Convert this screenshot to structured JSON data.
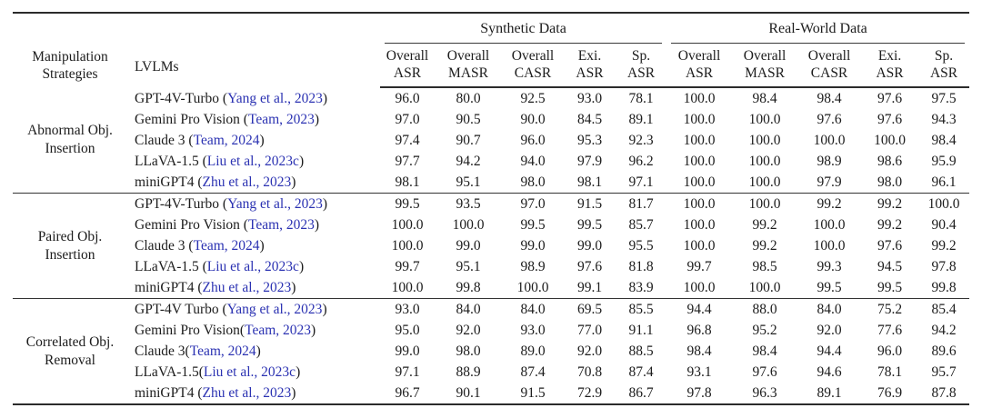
{
  "meta": {
    "link_color": "#2b32b2",
    "rule_color": "#2b2b2b"
  },
  "header": {
    "col1": [
      "Manipulation",
      "Strategies"
    ],
    "col2": "LVLMs",
    "groups": [
      "Synthetic Data",
      "Real-World Data"
    ],
    "metrics": [
      [
        "Overall",
        "ASR"
      ],
      [
        "Overall",
        "MASR"
      ],
      [
        "Overall",
        "CASR"
      ],
      [
        "Exi.",
        "ASR"
      ],
      [
        "Sp.",
        "ASR"
      ]
    ]
  },
  "body": {
    "groups": [
      {
        "strategy": [
          "Abnormal Obj.",
          "Insertion"
        ],
        "rows": [
          {
            "model": "GPT-4V-Turbo ",
            "cite": "Yang et al., 2023",
            "synthetic": [
              "96.0",
              "80.0",
              "92.5",
              "93.0",
              "78.1"
            ],
            "real": [
              "100.0",
              "98.4",
              "98.4",
              "97.6",
              "97.5"
            ]
          },
          {
            "model": "Gemini Pro Vision ",
            "cite": "Team, 2023",
            "synthetic": [
              "97.0",
              "90.5",
              "90.0",
              "84.5",
              "89.1"
            ],
            "real": [
              "100.0",
              "100.0",
              "97.6",
              "97.6",
              "94.3"
            ]
          },
          {
            "model": "Claude 3 ",
            "cite": "Team, 2024",
            "synthetic": [
              "97.4",
              "90.7",
              "96.0",
              "95.3",
              "92.3"
            ],
            "real": [
              "100.0",
              "100.0",
              "100.0",
              "100.0",
              "98.4"
            ]
          },
          {
            "model": "LLaVA-1.5 ",
            "cite": "Liu et al., 2023c",
            "synthetic": [
              "97.7",
              "94.2",
              "94.0",
              "97.9",
              "96.2"
            ],
            "real": [
              "100.0",
              "100.0",
              "98.9",
              "98.6",
              "95.9"
            ]
          },
          {
            "model": "miniGPT4 ",
            "cite": "Zhu et al., 2023",
            "synthetic": [
              "98.1",
              "95.1",
              "98.0",
              "98.1",
              "97.1"
            ],
            "real": [
              "100.0",
              "100.0",
              "97.9",
              "98.0",
              "96.1"
            ]
          }
        ]
      },
      {
        "strategy": [
          "Paired Obj.",
          "Insertion"
        ],
        "rows": [
          {
            "model": "GPT-4V-Turbo ",
            "cite": "Yang et al., 2023",
            "synthetic": [
              "99.5",
              "93.5",
              "97.0",
              "91.5",
              "81.7"
            ],
            "real": [
              "100.0",
              "100.0",
              "99.2",
              "99.2",
              "100.0"
            ]
          },
          {
            "model": "Gemini Pro Vision ",
            "cite": "Team, 2023",
            "synthetic": [
              "100.0",
              "100.0",
              "99.5",
              "99.5",
              "85.7"
            ],
            "real": [
              "100.0",
              "99.2",
              "100.0",
              "99.2",
              "90.4"
            ]
          },
          {
            "model": "Claude 3 ",
            "cite": "Team, 2024",
            "synthetic": [
              "100.0",
              "99.0",
              "99.0",
              "99.0",
              "95.5"
            ],
            "real": [
              "100.0",
              "99.2",
              "100.0",
              "97.6",
              "99.2"
            ]
          },
          {
            "model": "LLaVA-1.5 ",
            "cite": "Liu et al., 2023c",
            "synthetic": [
              "99.7",
              "95.1",
              "98.9",
              "97.6",
              "81.8"
            ],
            "real": [
              "99.7",
              "98.5",
              "99.3",
              "94.5",
              "97.8"
            ]
          },
          {
            "model": "miniGPT4 ",
            "cite": "Zhu et al., 2023",
            "synthetic": [
              "100.0",
              "99.8",
              "100.0",
              "99.1",
              "83.9"
            ],
            "real": [
              "100.0",
              "100.0",
              "99.5",
              "99.5",
              "99.8"
            ]
          }
        ]
      },
      {
        "strategy": [
          "Correlated Obj.",
          "Removal"
        ],
        "rows": [
          {
            "model": "GPT-4V Turbo ",
            "cite": "Yang et al., 2023",
            "synthetic": [
              "93.0",
              "84.0",
              "84.0",
              "69.5",
              "85.5"
            ],
            "real": [
              "94.4",
              "88.0",
              "84.0",
              "75.2",
              "85.4"
            ]
          },
          {
            "model": "Gemini Pro Vision",
            "cite": "Team, 2023",
            "synthetic": [
              "95.0",
              "92.0",
              "93.0",
              "77.0",
              "91.1"
            ],
            "real": [
              "96.8",
              "95.2",
              "92.0",
              "77.6",
              "94.2"
            ]
          },
          {
            "model": "Claude 3",
            "cite": "Team, 2024",
            "synthetic": [
              "99.0",
              "98.0",
              "89.0",
              "92.0",
              "88.5"
            ],
            "real": [
              "98.4",
              "98.4",
              "94.4",
              "96.0",
              "89.6"
            ]
          },
          {
            "model": "LLaVA-1.5",
            "cite": "Liu et al., 2023c",
            "synthetic": [
              "97.1",
              "88.9",
              "87.4",
              "70.8",
              "87.4"
            ],
            "real": [
              "93.1",
              "97.6",
              "94.6",
              "78.1",
              "95.7"
            ]
          },
          {
            "model": "miniGPT4 ",
            "cite": "Zhu et al., 2023",
            "synthetic": [
              "96.7",
              "90.1",
              "91.5",
              "72.9",
              "86.7"
            ],
            "real": [
              "97.8",
              "96.3",
              "89.1",
              "76.9",
              "87.8"
            ]
          }
        ]
      }
    ]
  }
}
